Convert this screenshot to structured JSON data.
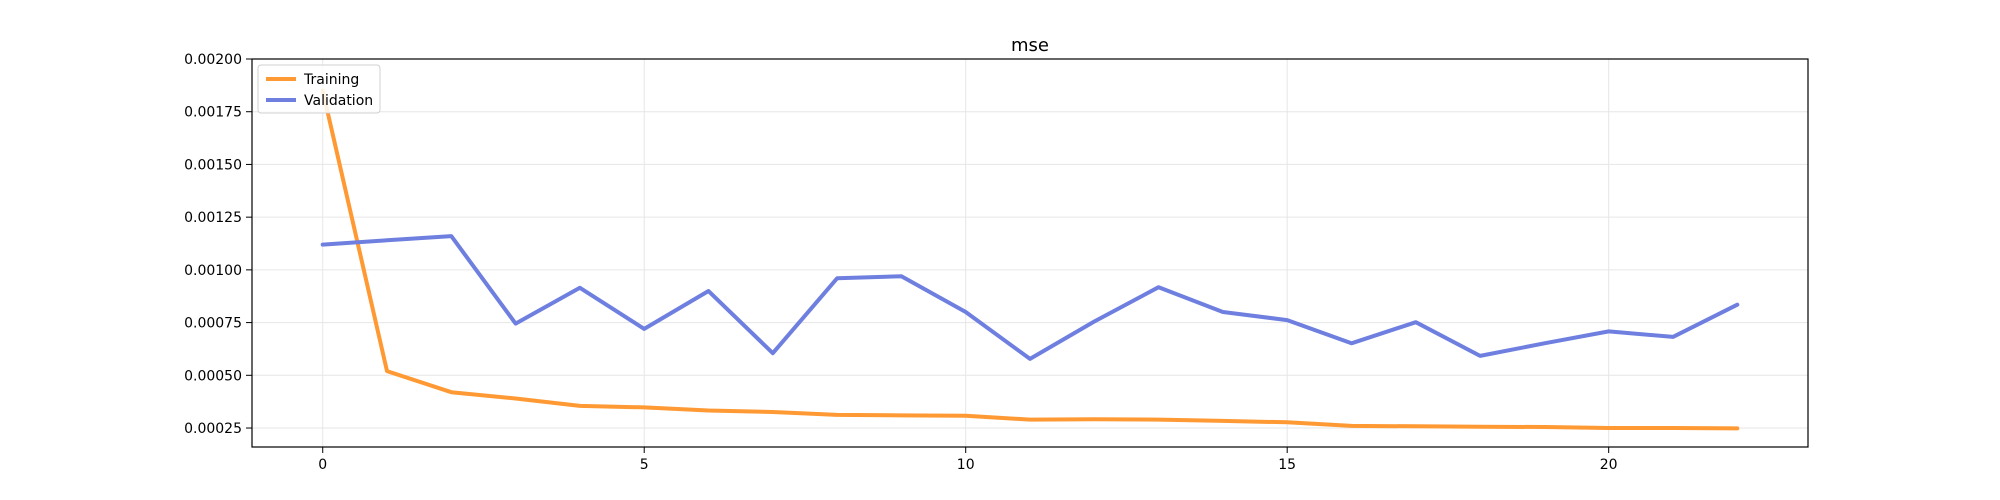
{
  "chart_data": {
    "type": "line",
    "title": "mse",
    "xlabel": "",
    "ylabel": "",
    "xlim": [
      -1.1,
      23.1
    ],
    "ylim": [
      0.00016,
      0.002
    ],
    "xticks": [
      0,
      5,
      10,
      15,
      20
    ],
    "yticks": [
      0.00025,
      0.0005,
      0.00075,
      0.001,
      0.00125,
      0.0015,
      0.00175,
      0.002
    ],
    "ytick_labels": [
      "0.00025",
      "0.00050",
      "0.00075",
      "0.00100",
      "0.00125",
      "0.00150",
      "0.00175",
      "0.00200"
    ],
    "grid": true,
    "legend_position": "top-left",
    "series": [
      {
        "name": "Training",
        "color": "#ff9933",
        "x": [
          0,
          1,
          2,
          3,
          4,
          5,
          6,
          7,
          8,
          9,
          10,
          11,
          12,
          13,
          14,
          15,
          16,
          17,
          18,
          19,
          20,
          21,
          22
        ],
        "values": [
          0.00185,
          0.00052,
          0.00042,
          0.00039,
          0.000355,
          0.000348,
          0.000333,
          0.000326,
          0.000312,
          0.00031,
          0.000308,
          0.00029,
          0.000292,
          0.00029,
          0.000284,
          0.000277,
          0.00026,
          0.000258,
          0.000256,
          0.000255,
          0.00025,
          0.00025,
          0.000248
        ]
      },
      {
        "name": "Validation",
        "color": "#6e7fe0",
        "x": [
          0,
          1,
          2,
          3,
          4,
          5,
          6,
          7,
          8,
          9,
          10,
          11,
          12,
          13,
          14,
          15,
          16,
          17,
          18,
          19,
          20,
          21,
          22
        ],
        "values": [
          0.00112,
          0.00114,
          0.00116,
          0.000745,
          0.000915,
          0.00072,
          0.0009,
          0.000605,
          0.00096,
          0.00097,
          0.0008,
          0.000578,
          0.000755,
          0.000918,
          0.0008,
          0.000762,
          0.000652,
          0.000752,
          0.000592,
          0.000652,
          0.000708,
          0.000682,
          0.000835
        ]
      }
    ]
  }
}
